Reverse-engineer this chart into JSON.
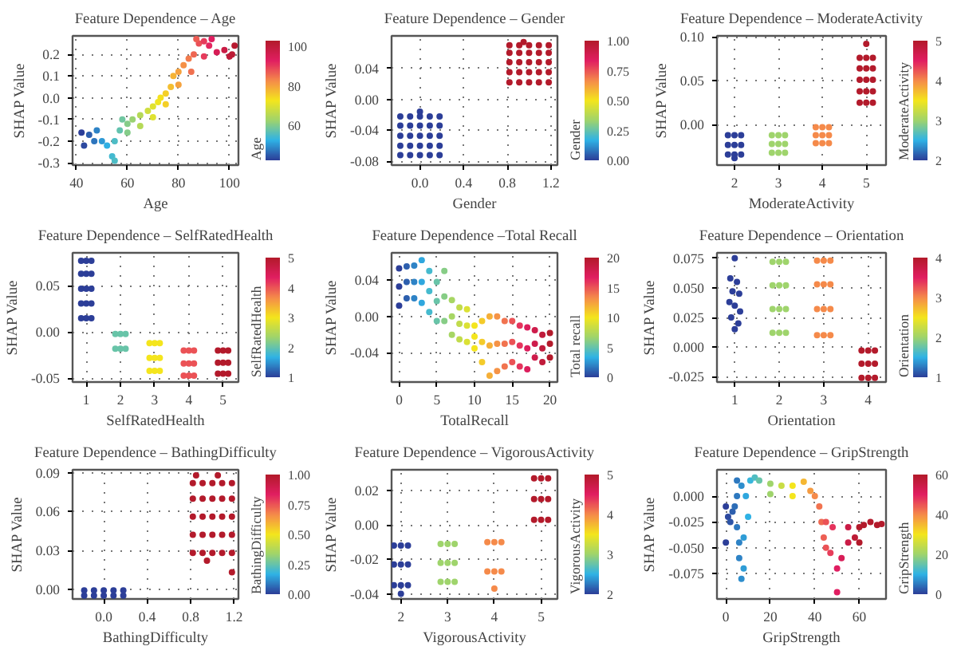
{
  "chart_data": [
    {
      "type": "scatter",
      "title": "Feature Dependence – Age",
      "xlabel": "Age",
      "ylabel": "SHAP Value",
      "clabel": "Age",
      "grid": true,
      "marker": "circle",
      "xlim": [
        38.5,
        103.5
      ],
      "ylim": [
        -0.31,
        0.285
      ],
      "xticks": [
        40,
        60,
        80,
        100
      ],
      "yticks": [
        -0.3,
        -0.2,
        -0.1,
        {
          "value": 0,
          "label": "0.0"
        },
        0.1,
        0.2
      ],
      "clim": [
        42,
        103
      ],
      "cticks": [
        60,
        80,
        100
      ],
      "x": [
        42,
        43,
        45,
        47,
        48,
        50,
        52,
        54,
        55,
        55,
        57,
        58,
        60,
        62,
        65,
        68,
        70,
        72,
        73,
        75,
        77,
        78,
        80,
        82,
        84,
        86,
        88,
        90,
        92,
        95,
        98,
        100,
        102,
        101,
        60,
        65,
        70,
        75,
        80,
        85,
        90,
        87,
        93
      ],
      "values": [
        -0.16,
        -0.22,
        -0.17,
        -0.2,
        -0.15,
        -0.2,
        -0.22,
        -0.27,
        -0.29,
        -0.2,
        -0.15,
        -0.1,
        -0.12,
        -0.1,
        -0.08,
        -0.06,
        -0.04,
        -0.02,
        0.0,
        0.02,
        0.05,
        0.1,
        0.12,
        0.15,
        0.18,
        0.2,
        0.25,
        0.26,
        0.24,
        0.21,
        0.22,
        0.19,
        0.24,
        0.2,
        -0.16,
        -0.13,
        -0.09,
        -0.03,
        0.06,
        0.12,
        0.19,
        0.27,
        0.27
      ],
      "cvalues": [
        42,
        43,
        45,
        47,
        48,
        50,
        52,
        54,
        55,
        55,
        57,
        58,
        60,
        62,
        65,
        68,
        70,
        72,
        73,
        75,
        77,
        78,
        80,
        82,
        84,
        86,
        88,
        90,
        92,
        95,
        98,
        100,
        102,
        101,
        60,
        65,
        70,
        75,
        80,
        85,
        90,
        87,
        93
      ]
    },
    {
      "type": "scatter",
      "title": "Feature Dependence – Gender",
      "xlabel": "Gender",
      "ylabel": "SHAP Value",
      "clabel": "Gender",
      "grid": true,
      "marker": "circle",
      "xlim": [
        -0.26,
        1.26
      ],
      "ylim": [
        -0.085,
        0.082
      ],
      "xticks": [
        {
          "value": 0,
          "label": "0.0"
        },
        0.4,
        0.8,
        1.2
      ],
      "yticks": [
        -0.08,
        -0.04,
        {
          "value": 0,
          "label": "0.00"
        },
        0.04
      ],
      "clim": [
        0,
        1
      ],
      "cticks": [
        {
          "value": 0,
          "label": "0.00"
        },
        0.25,
        {
          "value": 0.5,
          "label": "0.50"
        },
        0.75,
        {
          "value": 1,
          "label": "1.00"
        }
      ],
      "x": [
        -0.18,
        -0.09,
        0,
        0.09,
        0.18,
        -0.18,
        -0.09,
        0,
        0.09,
        0.18,
        -0.18,
        -0.09,
        0,
        0.09,
        0.18,
        -0.18,
        -0.09,
        0,
        0.09,
        0.18,
        -0.18,
        -0.09,
        0,
        0.09,
        0.18,
        0,
        0.82,
        0.91,
        1,
        1.09,
        1.18,
        0.82,
        0.91,
        1,
        1.09,
        1.18,
        0.82,
        0.91,
        1,
        1.09,
        1.18,
        0.82,
        0.91,
        1,
        1.09,
        1.18,
        0.82,
        0.91,
        1,
        1.09,
        1.18,
        0.95
      ],
      "values": [
        -0.072,
        -0.072,
        -0.072,
        -0.072,
        -0.072,
        -0.06,
        -0.06,
        -0.06,
        -0.06,
        -0.06,
        -0.047,
        -0.047,
        -0.047,
        -0.047,
        -0.047,
        -0.034,
        -0.034,
        -0.034,
        -0.034,
        -0.034,
        -0.022,
        -0.022,
        -0.022,
        -0.022,
        -0.022,
        -0.016,
        0.022,
        0.022,
        0.022,
        0.022,
        0.022,
        0.035,
        0.035,
        0.035,
        0.035,
        0.035,
        0.048,
        0.048,
        0.048,
        0.048,
        0.048,
        0.06,
        0.06,
        0.06,
        0.06,
        0.06,
        0.07,
        0.07,
        0.07,
        0.07,
        0.07,
        0.074
      ],
      "cvalues": [
        0,
        0,
        0,
        0,
        0,
        0,
        0,
        0,
        0,
        0,
        0,
        0,
        0,
        0,
        0,
        0,
        0,
        0,
        0,
        0,
        0,
        0,
        0,
        0,
        0,
        0,
        1,
        1,
        1,
        1,
        1,
        1,
        1,
        1,
        1,
        1,
        1,
        1,
        1,
        1,
        1,
        1,
        1,
        1,
        1,
        1,
        1,
        1,
        1,
        1,
        1,
        1
      ]
    },
    {
      "type": "scatter",
      "title": "Feature Dependence – ModerateActivity",
      "xlabel": "ModerateActivity",
      "ylabel": "SHAP Value",
      "clabel": "ModerateActivity",
      "grid": true,
      "marker": "circle",
      "xlim": [
        1.6,
        5.45
      ],
      "ylim": [
        -0.046,
        0.101
      ],
      "xticks": [
        2,
        3,
        4,
        5
      ],
      "yticks": [
        {
          "value": 0,
          "label": "0.00"
        },
        0.05,
        {
          "value": 0.1,
          "label": "0.10"
        }
      ],
      "clim": [
        2,
        5
      ],
      "cticks": [
        2,
        3,
        4,
        5
      ],
      "x": [
        1.85,
        2,
        2.15,
        1.85,
        2,
        2.15,
        1.85,
        2,
        2.15,
        2,
        2.85,
        3,
        3.15,
        2.85,
        3,
        3.15,
        2.85,
        3,
        3.15,
        3.85,
        4,
        4.15,
        3.85,
        4,
        4.15,
        3.85,
        4,
        4.15,
        4.85,
        5,
        5.15,
        4.85,
        5,
        5.15,
        4.85,
        5,
        5.15,
        4.85,
        5,
        5.15,
        4.85,
        5,
        5.15,
        5
      ],
      "values": [
        -0.034,
        -0.034,
        -0.034,
        -0.023,
        -0.023,
        -0.023,
        -0.012,
        -0.012,
        -0.012,
        -0.038,
        -0.032,
        -0.032,
        -0.032,
        -0.022,
        -0.022,
        -0.022,
        -0.012,
        -0.012,
        -0.012,
        -0.021,
        -0.021,
        -0.021,
        -0.012,
        -0.012,
        -0.012,
        -0.003,
        -0.003,
        -0.003,
        0.025,
        0.025,
        0.025,
        0.038,
        0.038,
        0.038,
        0.051,
        0.051,
        0.051,
        0.064,
        0.064,
        0.064,
        0.076,
        0.076,
        0.076,
        0.092
      ],
      "cvalues": [
        2,
        2,
        2,
        2,
        2,
        2,
        2,
        2,
        2,
        2,
        3,
        3,
        3,
        3,
        3,
        3,
        3,
        3,
        3,
        4,
        4,
        4,
        4,
        4,
        4,
        4,
        4,
        4,
        5,
        5,
        5,
        5,
        5,
        5,
        5,
        5,
        5,
        5,
        5,
        5,
        5,
        5,
        5,
        5
      ]
    },
    {
      "type": "scatter",
      "title": "Feature Dependence – SelfRatedHealth",
      "xlabel": "SelfRatedHealth",
      "ylabel": "SHAP Value",
      "clabel": "SelfRatedHealth",
      "grid": true,
      "marker": "circle",
      "xlim": [
        0.6,
        5.45
      ],
      "ylim": [
        -0.054,
        0.0857
      ],
      "xticks": [
        1,
        2,
        3,
        4,
        5
      ],
      "yticks": [
        -0.05,
        {
          "value": 0,
          "label": "0.00"
        },
        0.05
      ],
      "clim": [
        1,
        5
      ],
      "cticks": [
        1,
        2,
        3,
        4,
        5
      ],
      "x": [
        0.85,
        1,
        1.15,
        0.85,
        1,
        1.15,
        0.85,
        1,
        1.15,
        0.85,
        1,
        1.15,
        0.85,
        1,
        1.15,
        1.85,
        2,
        2.15,
        1.85,
        2,
        2.15,
        2.85,
        3,
        3.15,
        2.85,
        3,
        3.15,
        2.85,
        3,
        3.15,
        3.85,
        4,
        4.15,
        3.85,
        4,
        4.15,
        3.85,
        4,
        4.15,
        4.85,
        5,
        5.15,
        4.85,
        5,
        5.15,
        4.85,
        5,
        5.15
      ],
      "values": [
        0.015,
        0.015,
        0.015,
        0.031,
        0.031,
        0.031,
        0.047,
        0.047,
        0.047,
        0.063,
        0.063,
        0.063,
        0.077,
        0.077,
        0.077,
        -0.018,
        -0.018,
        -0.018,
        -0.002,
        -0.002,
        -0.002,
        -0.042,
        -0.042,
        -0.042,
        -0.028,
        -0.028,
        -0.028,
        -0.012,
        -0.012,
        -0.012,
        -0.047,
        -0.047,
        -0.047,
        -0.034,
        -0.034,
        -0.034,
        -0.02,
        -0.02,
        -0.02,
        -0.045,
        -0.045,
        -0.045,
        -0.033,
        -0.033,
        -0.033,
        -0.02,
        -0.02,
        -0.02
      ],
      "cvalues": [
        1,
        1,
        1,
        1,
        1,
        1,
        1,
        1,
        1,
        1,
        1,
        1,
        1,
        1,
        1,
        2,
        2,
        2,
        2,
        2,
        2,
        3,
        3,
        3,
        3,
        3,
        3,
        3,
        3,
        3,
        4,
        4,
        4,
        4,
        4,
        4,
        4,
        4,
        4,
        5,
        5,
        5,
        5,
        5,
        5,
        5,
        5,
        5
      ]
    },
    {
      "type": "scatter",
      "title": "Feature Dependence –Total Recall",
      "xlabel": "TotalRecall",
      "ylabel": "SHAP Value",
      "clabel": "Total recall",
      "grid": true,
      "marker": "circle",
      "xlim": [
        -1,
        21
      ],
      "ylim": [
        -0.072,
        0.07
      ],
      "xticks": [
        0,
        5,
        10,
        15,
        20
      ],
      "yticks": [
        -0.04,
        {
          "value": 0,
          "label": "0.00"
        },
        0.04
      ],
      "clim": [
        0,
        20
      ],
      "cticks": [
        0,
        5,
        10,
        15,
        20
      ],
      "x": [
        0,
        0,
        0,
        1,
        1,
        1,
        2,
        2,
        2,
        3,
        3,
        3,
        4,
        4,
        4,
        5,
        5,
        5,
        6,
        6,
        6,
        7,
        7,
        7,
        8,
        8,
        8,
        9,
        9,
        9,
        10,
        10,
        10,
        11,
        11,
        11,
        12,
        12,
        12,
        13,
        13,
        13,
        14,
        14,
        14,
        15,
        15,
        15,
        16,
        16,
        16,
        17,
        17,
        17,
        18,
        18,
        18,
        19,
        19,
        19,
        20,
        20,
        20
      ],
      "values": [
        0.012,
        0.033,
        0.053,
        0.02,
        0.038,
        0.055,
        0.02,
        0.038,
        0.056,
        0.015,
        0.038,
        0.062,
        0.005,
        0.028,
        0.05,
        -0.005,
        0.017,
        0.038,
        -0.005,
        0.022,
        0.05,
        -0.02,
        0.0,
        0.018,
        -0.025,
        -0.008,
        0.01,
        -0.028,
        -0.01,
        0.008,
        -0.035,
        -0.022,
        -0.01,
        -0.05,
        -0.028,
        -0.005,
        -0.065,
        -0.032,
        0.0,
        -0.06,
        -0.03,
        0.0,
        -0.055,
        -0.03,
        -0.005,
        -0.05,
        -0.028,
        -0.005,
        -0.055,
        -0.032,
        -0.01,
        -0.058,
        -0.035,
        -0.012,
        -0.045,
        -0.03,
        -0.015,
        -0.05,
        -0.035,
        -0.02,
        -0.045,
        -0.03,
        -0.018
      ],
      "cvalues": [
        0,
        0,
        0,
        1,
        1,
        1,
        2,
        2,
        2,
        3,
        3,
        3,
        4,
        4,
        4,
        5,
        5,
        5,
        6,
        6,
        6,
        7,
        7,
        7,
        8,
        8,
        8,
        9,
        9,
        9,
        10,
        10,
        10,
        11,
        11,
        11,
        12,
        12,
        12,
        13,
        13,
        13,
        14,
        14,
        14,
        15,
        15,
        15,
        16,
        16,
        16,
        17,
        17,
        17,
        18,
        18,
        18,
        19,
        19,
        19,
        20,
        20,
        20
      ]
    },
    {
      "type": "scatter",
      "title": "Feature Dependence – Orientation",
      "xlabel": "Orientation",
      "ylabel": "SHAP Value",
      "clabel": "Orientation",
      "grid": true,
      "marker": "circle",
      "xlim": [
        0.6,
        4.4
      ],
      "ylim": [
        -0.0295,
        0.0795
      ],
      "xticks": [
        1,
        2,
        3,
        4
      ],
      "yticks": [
        -0.025,
        {
          "value": 0,
          "label": "0.000"
        },
        0.025,
        {
          "value": 0.05,
          "label": "0.050"
        },
        0.075
      ],
      "clim": [
        1,
        4
      ],
      "cticks": [
        1,
        2,
        3,
        4
      ],
      "x": [
        0.9,
        1.05,
        0.95,
        1.1,
        0.88,
        1,
        1.12,
        0.92,
        1.08,
        1,
        1,
        1.85,
        2,
        2.15,
        1.85,
        2,
        2.15,
        1.85,
        2,
        2.15,
        1.85,
        2,
        2.15,
        2.85,
        3,
        3.15,
        2.85,
        3,
        3.15,
        2.85,
        3,
        3.15,
        2.85,
        3,
        3.15,
        3.85,
        4,
        4.15,
        3.85,
        4,
        4.15,
        3.85,
        4,
        4.15
      ],
      "values": [
        0.058,
        0.055,
        0.047,
        0.045,
        0.038,
        0.035,
        0.03,
        0.025,
        0.02,
        0.015,
        0.075,
        0.012,
        0.012,
        0.012,
        0.032,
        0.032,
        0.032,
        0.052,
        0.052,
        0.052,
        0.072,
        0.072,
        0.072,
        0.01,
        0.01,
        0.01,
        0.032,
        0.032,
        0.032,
        0.053,
        0.053,
        0.053,
        0.073,
        0.073,
        0.073,
        -0.026,
        -0.026,
        -0.026,
        -0.014,
        -0.014,
        -0.014,
        -0.003,
        -0.003,
        -0.003
      ],
      "cvalues": [
        1,
        1,
        1,
        1,
        1,
        1,
        1,
        1,
        1,
        1,
        1,
        2,
        2,
        2,
        2,
        2,
        2,
        2,
        2,
        2,
        2,
        2,
        2,
        3,
        3,
        3,
        3,
        3,
        3,
        3,
        3,
        3,
        3,
        3,
        3,
        4,
        4,
        4,
        4,
        4,
        4,
        4,
        4,
        4
      ]
    },
    {
      "type": "scatter",
      "title": "Feature Dependence – BathingDifficulty",
      "xlabel": "BathingDifficulty",
      "ylabel": "SHAP Value",
      "clabel": "BathingDifficulty",
      "grid": true,
      "marker": "circle",
      "xlim": [
        -0.287,
        1.24
      ],
      "ylim": [
        -0.0076,
        0.0923
      ],
      "xticks": [
        {
          "value": 0,
          "label": "0.0"
        },
        0.4,
        0.8,
        1.2
      ],
      "yticks": [
        {
          "value": 0,
          "label": "0.00"
        },
        0.03,
        0.06,
        0.09
      ],
      "clim": [
        0,
        1
      ],
      "cticks": [
        {
          "value": 0,
          "label": "0.00"
        },
        0.25,
        {
          "value": 0.5,
          "label": "0.50"
        },
        0.75,
        {
          "value": 1,
          "label": "1.00"
        }
      ],
      "x": [
        -0.18,
        -0.09,
        0,
        0.09,
        0.18,
        -0.18,
        -0.09,
        0,
        0.09,
        0.18,
        0.82,
        0.91,
        1,
        1.09,
        1.18,
        0.82,
        0.91,
        1,
        1.09,
        1.18,
        0.82,
        0.91,
        1,
        1.09,
        1.18,
        0.82,
        0.91,
        1,
        1.09,
        1.18,
        0.82,
        0.91,
        1,
        1.09,
        1.18,
        0.85,
        1.05,
        1.18,
        0.95
      ],
      "values": [
        -0.005,
        -0.005,
        -0.005,
        -0.005,
        -0.005,
        -0.001,
        -0.001,
        -0.001,
        -0.001,
        -0.001,
        0.028,
        0.028,
        0.028,
        0.028,
        0.028,
        0.042,
        0.042,
        0.042,
        0.042,
        0.042,
        0.056,
        0.056,
        0.056,
        0.056,
        0.056,
        0.07,
        0.07,
        0.07,
        0.07,
        0.07,
        0.082,
        0.082,
        0.082,
        0.082,
        0.082,
        0.088,
        0.088,
        0.013,
        0.022
      ],
      "cvalues": [
        0,
        0,
        0,
        0,
        0,
        0,
        0,
        0,
        0,
        0,
        1,
        1,
        1,
        1,
        1,
        1,
        1,
        1,
        1,
        1,
        1,
        1,
        1,
        1,
        1,
        1,
        1,
        1,
        1,
        1,
        1,
        1,
        1,
        1,
        1,
        1,
        1,
        1,
        1
      ]
    },
    {
      "type": "scatter",
      "title": "Feature Dependence – VigorousActivity",
      "xlabel": "VigorousActivity",
      "ylabel": "SHAP Value",
      "clabel": "VigorousActivity",
      "grid": true,
      "marker": "circle",
      "xlim": [
        1.8,
        5.35
      ],
      "ylim": [
        -0.043,
        0.032
      ],
      "xticks": [
        2,
        3,
        4,
        5
      ],
      "yticks": [
        -0.04,
        -0.02,
        {
          "value": 0,
          "label": "0.00"
        },
        0.02
      ],
      "clim": [
        2,
        5
      ],
      "cticks": [
        2,
        3,
        4,
        5
      ],
      "x": [
        1.85,
        2,
        2.15,
        1.85,
        2,
        2.15,
        1.85,
        2,
        2.15,
        2,
        2.85,
        3,
        3.15,
        2.85,
        3,
        3.15,
        2.85,
        3,
        3.15,
        3.85,
        4,
        4.15,
        3.85,
        4,
        4.15,
        4,
        4.85,
        5,
        5.15,
        4.85,
        5,
        5.15,
        4.85,
        5,
        5.15
      ],
      "values": [
        -0.035,
        -0.035,
        -0.035,
        -0.023,
        -0.023,
        -0.023,
        -0.012,
        -0.012,
        -0.012,
        -0.04,
        -0.033,
        -0.033,
        -0.033,
        -0.022,
        -0.022,
        -0.022,
        -0.011,
        -0.011,
        -0.011,
        -0.027,
        -0.027,
        -0.027,
        -0.01,
        -0.01,
        -0.01,
        -0.037,
        0.003,
        0.003,
        0.003,
        0.015,
        0.015,
        0.015,
        0.027,
        0.027,
        0.027
      ],
      "cvalues": [
        2,
        2,
        2,
        2,
        2,
        2,
        2,
        2,
        2,
        2,
        3,
        3,
        3,
        3,
        3,
        3,
        3,
        3,
        3,
        4,
        4,
        4,
        4,
        4,
        4,
        4,
        5,
        5,
        5,
        5,
        5,
        5,
        5,
        5,
        5
      ]
    },
    {
      "type": "scatter",
      "title": "Feature Dependence – GripStrength",
      "xlabel": "GripStrength",
      "ylabel": "SHAP Value",
      "clabel": "GripStrength",
      "grid": true,
      "marker": "circle",
      "xlim": [
        -4,
        72
      ],
      "ylim": [
        -0.0995,
        0.0255
      ],
      "xticks": [
        0,
        20,
        40,
        60
      ],
      "yticks": [
        -0.075,
        {
          "value": -0.05,
          "label": "-0.050"
        },
        -0.025,
        {
          "value": 0,
          "label": "0.000"
        }
      ],
      "clim": [
        0,
        60
      ],
      "cticks": [
        0,
        20,
        40,
        60
      ],
      "x": [
        0,
        0,
        1,
        2,
        3,
        4,
        5,
        5,
        6,
        6,
        7,
        7,
        8,
        8,
        9,
        10,
        11,
        13,
        15,
        20,
        25,
        30,
        35,
        38,
        40,
        42,
        43,
        44,
        45,
        47,
        50,
        50,
        52,
        55,
        58,
        60,
        62,
        65,
        68,
        70,
        48,
        55,
        20,
        30,
        45,
        60,
        5
      ],
      "values": [
        -0.045,
        -0.01,
        -0.02,
        -0.025,
        -0.015,
        -0.01,
        0.0,
        -0.03,
        -0.06,
        -0.045,
        -0.08,
        0.01,
        -0.07,
        -0.04,
        0.0,
        -0.02,
        0.015,
        0.018,
        0.015,
        0.012,
        0.01,
        0.01,
        0.014,
        0.005,
        0.0,
        -0.01,
        -0.025,
        -0.04,
        -0.05,
        -0.055,
        -0.07,
        -0.093,
        -0.06,
        -0.045,
        -0.04,
        -0.03,
        -0.028,
        -0.025,
        -0.028,
        -0.027,
        -0.03,
        -0.03,
        0.002,
        0.0,
        -0.025,
        -0.045,
        0.015
      ],
      "cvalues": [
        0,
        0,
        1,
        2,
        3,
        4,
        5,
        5,
        6,
        6,
        7,
        7,
        8,
        8,
        9,
        10,
        11,
        13,
        15,
        20,
        25,
        30,
        35,
        38,
        40,
        42,
        43,
        44,
        45,
        47,
        50,
        50,
        52,
        55,
        58,
        60,
        62,
        65,
        68,
        70,
        48,
        55,
        20,
        30,
        45,
        60,
        5
      ]
    }
  ]
}
